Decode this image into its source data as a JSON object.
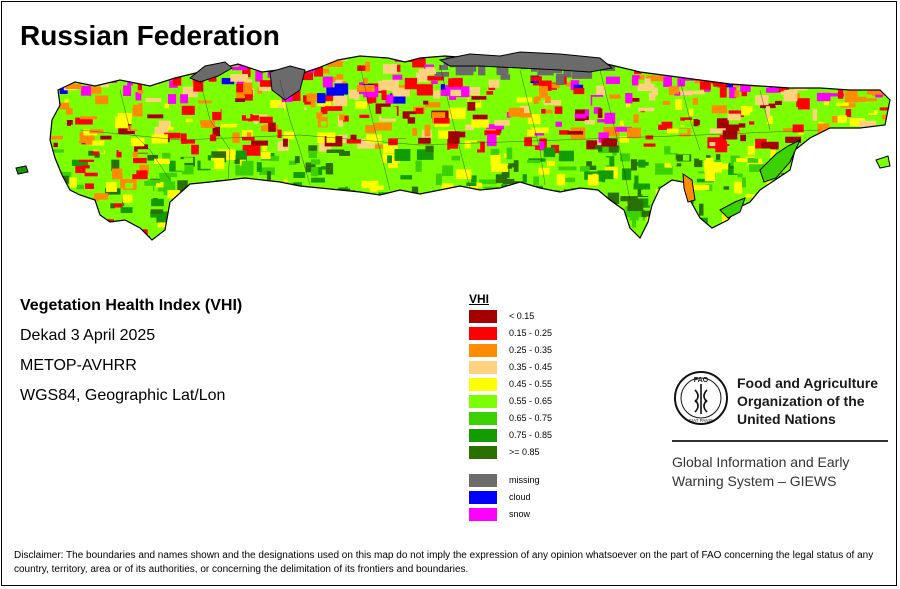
{
  "title": "Russian Federation",
  "info": {
    "index_name": "Vegetation Health Index (VHI)",
    "period": "Dekad 3 April 2025",
    "sensor": "METOP-AVHRR",
    "projection": "WGS84, Geographic Lat/Lon"
  },
  "legend": {
    "title": "VHI",
    "classes": [
      {
        "label": "< 0.15",
        "color": "#a50000"
      },
      {
        "label": "0.15 - 0.25",
        "color": "#ff0000"
      },
      {
        "label": "0.25 - 0.35",
        "color": "#ff8c00"
      },
      {
        "label": "0.35 - 0.45",
        "color": "#ffd27f"
      },
      {
        "label": "0.45 - 0.55",
        "color": "#ffff00"
      },
      {
        "label": "0.55 - 0.65",
        "color": "#7cff00"
      },
      {
        "label": "0.65 - 0.75",
        "color": "#3cd100"
      },
      {
        "label": "0.75 - 0.85",
        "color": "#149b00"
      },
      {
        "label": ">= 0.85",
        "color": "#2a7000"
      }
    ],
    "special": [
      {
        "label": "missing",
        "color": "#6b6b6b"
      },
      {
        "label": "cloud",
        "color": "#0000ff"
      },
      {
        "label": "snow",
        "color": "#ff00ff"
      }
    ]
  },
  "organization": {
    "name_lines": [
      "Food and Agriculture",
      "Organization of the",
      "United Nations"
    ],
    "logo_text": "FAO",
    "logo_motto": "FIAT PANIS",
    "program_lines": [
      "Global Information and Early",
      "Warning System – GIEWS"
    ]
  },
  "disclaimer": "Disclaimer: The boundaries and names shown and the designations used on this map do not imply the expression of any opinion whatsoever on the part of FAO concerning the legal status of any country, territory, area or of its authorities, or concerning the delimitation of its frontiers and boundaries."
}
